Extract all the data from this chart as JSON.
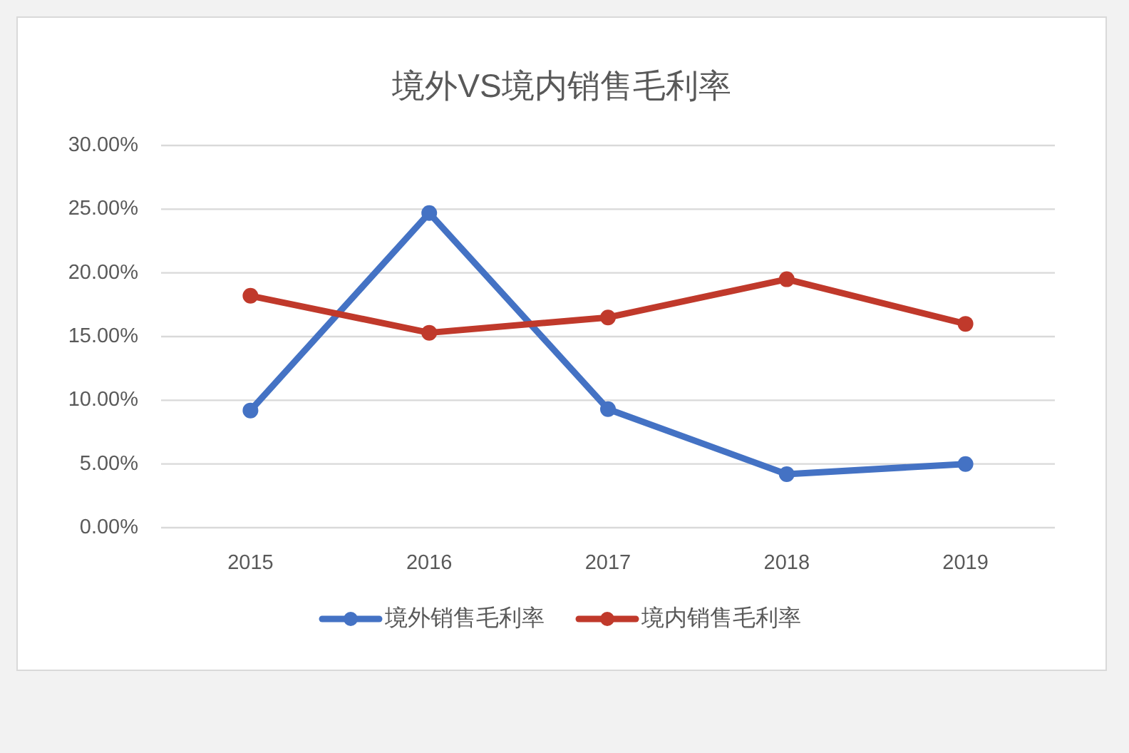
{
  "chart_data": {
    "type": "line",
    "title": "境外VS境内销售毛利率",
    "categories": [
      "2015",
      "2016",
      "2017",
      "2018",
      "2019"
    ],
    "series": [
      {
        "name": "境外销售毛利率",
        "color": "#4472c4",
        "values": [
          9.2,
          24.7,
          9.3,
          4.2,
          5.0
        ]
      },
      {
        "name": "境内销售毛利率",
        "color": "#c0392b",
        "values": [
          18.2,
          15.3,
          16.5,
          19.5,
          16.0
        ]
      }
    ],
    "ylim": [
      0,
      30
    ],
    "yticks": [
      {
        "value": 0,
        "label": "0.00%"
      },
      {
        "value": 5,
        "label": "5.00%"
      },
      {
        "value": 10,
        "label": "10.00%"
      },
      {
        "value": 15,
        "label": "15.00%"
      },
      {
        "value": 20,
        "label": "20.00%"
      },
      {
        "value": 25,
        "label": "25.00%"
      },
      {
        "value": 30,
        "label": "30.00%"
      }
    ],
    "grid": "y",
    "legend": "bottom",
    "marker": "circle",
    "line_style": "solid"
  }
}
